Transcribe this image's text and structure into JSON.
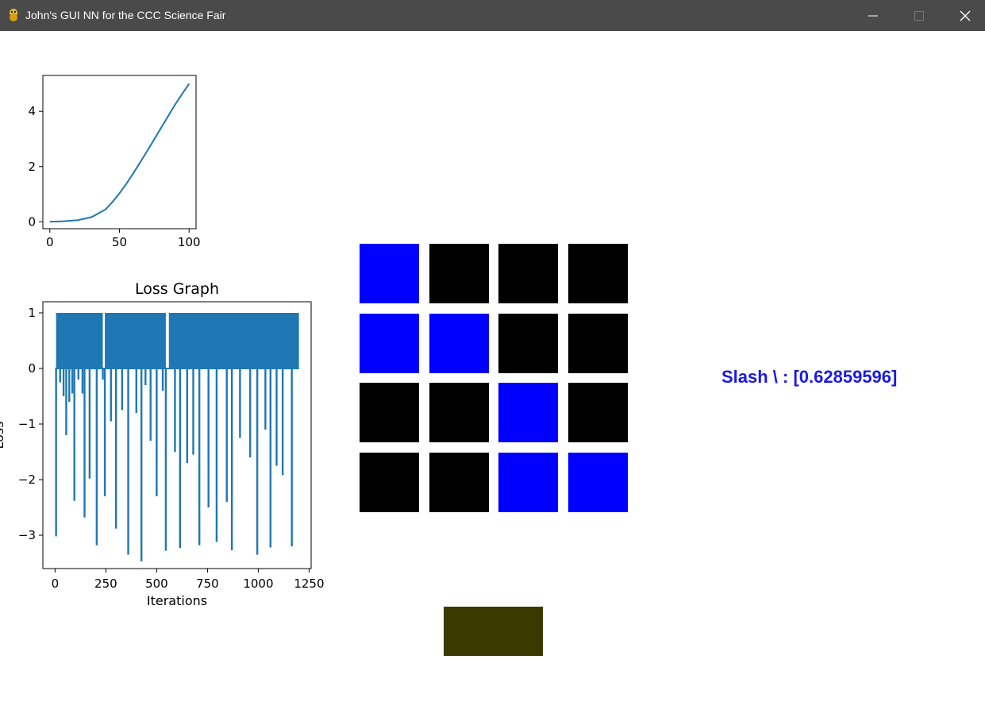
{
  "window": {
    "title": "John's GUI NN for the CCC Science Fair"
  },
  "colors": {
    "on": "#0000ff",
    "off": "#000000",
    "button": "#3a3a00",
    "line": "#1f77b4",
    "prediction_text": "#1a1ae6"
  },
  "chart_data": [
    {
      "type": "line",
      "title": "",
      "xlabel": "",
      "ylabel": "",
      "xlim": [
        -5,
        105
      ],
      "ylim": [
        -0.25,
        5.3
      ],
      "xticks": [
        0,
        50,
        100
      ],
      "yticks": [
        0,
        2,
        4
      ],
      "grid": false,
      "series": [
        {
          "x": [
            0,
            10,
            20,
            30,
            40,
            45,
            50,
            55,
            60,
            65,
            70,
            75,
            80,
            85,
            90,
            95,
            100
          ],
          "values": [
            0.0,
            0.02,
            0.06,
            0.17,
            0.45,
            0.72,
            1.03,
            1.38,
            1.76,
            2.16,
            2.57,
            2.99,
            3.41,
            3.83,
            4.25,
            4.63,
            5.0
          ]
        }
      ]
    },
    {
      "type": "line",
      "title": "Loss Graph",
      "xlabel": "Iterations",
      "ylabel": "Loss",
      "xlim": [
        -60,
        1260
      ],
      "ylim": [
        -3.6,
        1.2
      ],
      "xticks": [
        0,
        250,
        500,
        750,
        1000,
        1250
      ],
      "yticks": [
        1,
        0,
        -1,
        -2,
        -3
      ],
      "grid": false,
      "series": [
        {
          "name": "",
          "baseline_low": 0,
          "baseline_high": 1,
          "high_band": [
            [
              5,
              235
            ],
            [
              245,
              545
            ],
            [
              560,
              1200
            ]
          ],
          "spikes": [
            [
              5,
              -3.02
            ],
            [
              25,
              -0.25
            ],
            [
              42,
              -0.5
            ],
            [
              55,
              -1.2
            ],
            [
              70,
              -0.6
            ],
            [
              85,
              -0.45
            ],
            [
              95,
              -2.38
            ],
            [
              115,
              -0.2
            ],
            [
              135,
              -0.45
            ],
            [
              145,
              -2.68
            ],
            [
              170,
              -1.98
            ],
            [
              205,
              -3.18
            ],
            [
              235,
              -0.2
            ],
            [
              245,
              -2.3
            ],
            [
              275,
              -0.95
            ],
            [
              300,
              -2.88
            ],
            [
              330,
              -0.75
            ],
            [
              360,
              -3.35
            ],
            [
              400,
              -0.8
            ],
            [
              425,
              -3.47
            ],
            [
              445,
              -0.3
            ],
            [
              470,
              -1.3
            ],
            [
              500,
              -2.3
            ],
            [
              530,
              -0.4
            ],
            [
              545,
              -3.28
            ],
            [
              590,
              -1.5
            ],
            [
              615,
              -3.23
            ],
            [
              650,
              -1.7
            ],
            [
              680,
              -1.55
            ],
            [
              710,
              -3.18
            ],
            [
              755,
              -2.5
            ],
            [
              795,
              -3.12
            ],
            [
              845,
              -2.4
            ],
            [
              870,
              -3.27
            ],
            [
              910,
              -1.25
            ],
            [
              960,
              -1.6
            ],
            [
              995,
              -3.35
            ],
            [
              1035,
              -1.1
            ],
            [
              1060,
              -3.22
            ],
            [
              1090,
              -1.75
            ],
            [
              1120,
              -1.92
            ],
            [
              1165,
              -3.2
            ]
          ]
        }
      ]
    }
  ],
  "grid": {
    "cells": [
      [
        1,
        0,
        0,
        0
      ],
      [
        1,
        1,
        0,
        0
      ],
      [
        0,
        0,
        1,
        0
      ],
      [
        0,
        0,
        1,
        1
      ]
    ]
  },
  "prediction": {
    "text": "Slash \\ : [0.62859596]"
  },
  "icons": {
    "app": "python-snake-icon",
    "minimize": "minimize-icon",
    "maximize": "maximize-icon",
    "close": "close-icon"
  }
}
